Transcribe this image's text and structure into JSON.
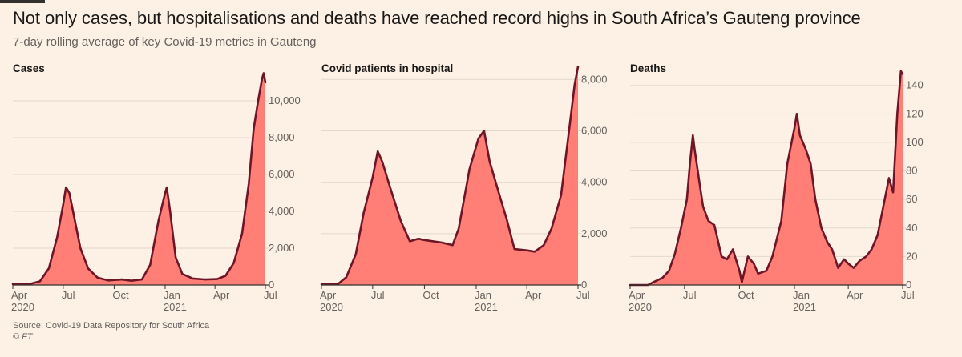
{
  "title": "Not only cases, but hospitalisations and deaths have reached record highs in South Africa’s Gauteng province",
  "subtitle": "7-day rolling average of key Covid-19 metrics in Gauteng",
  "source": "Source: Covid-19 Data Repository for South Africa",
  "copyright": "© FT",
  "colors": {
    "fill": "#ff7f76",
    "line": "#6e1527",
    "grid": "#e3d8cd",
    "axis": "#33302e",
    "text": "#66605c"
  },
  "chart_data": [
    {
      "type": "area",
      "title": "Cases",
      "x_start": "2020-04-01",
      "x_end": "2021-07-01",
      "xticks": [
        {
          "date": "2020-04-01",
          "label": "Apr",
          "sublabel": "2020"
        },
        {
          "date": "2020-07-01",
          "label": "Jul",
          "sublabel": ""
        },
        {
          "date": "2020-10-01",
          "label": "Oct",
          "sublabel": ""
        },
        {
          "date": "2021-01-01",
          "label": "Jan",
          "sublabel": "2021"
        },
        {
          "date": "2021-04-01",
          "label": "Apr",
          "sublabel": ""
        },
        {
          "date": "2021-07-01",
          "label": "Jul",
          "sublabel": ""
        }
      ],
      "ylim": [
        0,
        12000
      ],
      "yticks": [
        0,
        2000,
        4000,
        6000,
        8000,
        10000
      ],
      "ytick_labels": [
        "0",
        "2,000",
        "4,000",
        "6,000",
        "8,000",
        "10,000"
      ],
      "points": [
        [
          "2020-04-01",
          50
        ],
        [
          "2020-05-01",
          50
        ],
        [
          "2020-05-20",
          200
        ],
        [
          "2020-06-05",
          900
        ],
        [
          "2020-06-20",
          2600
        ],
        [
          "2020-07-01",
          4400
        ],
        [
          "2020-07-06",
          5300
        ],
        [
          "2020-07-12",
          5000
        ],
        [
          "2020-07-20",
          3800
        ],
        [
          "2020-08-01",
          2000
        ],
        [
          "2020-08-15",
          900
        ],
        [
          "2020-09-01",
          400
        ],
        [
          "2020-09-20",
          250
        ],
        [
          "2020-10-15",
          300
        ],
        [
          "2020-11-01",
          230
        ],
        [
          "2020-11-20",
          300
        ],
        [
          "2020-12-05",
          1100
        ],
        [
          "2020-12-20",
          3500
        ],
        [
          "2021-01-01",
          5000
        ],
        [
          "2021-01-04",
          5300
        ],
        [
          "2021-01-10",
          4000
        ],
        [
          "2021-01-20",
          1500
        ],
        [
          "2021-02-01",
          600
        ],
        [
          "2021-02-20",
          350
        ],
        [
          "2021-03-15",
          300
        ],
        [
          "2021-04-05",
          320
        ],
        [
          "2021-04-20",
          500
        ],
        [
          "2021-05-05",
          1200
        ],
        [
          "2021-05-20",
          2800
        ],
        [
          "2021-06-01",
          5500
        ],
        [
          "2021-06-10",
          8500
        ],
        [
          "2021-06-18",
          10000
        ],
        [
          "2021-06-25",
          11200
        ],
        [
          "2021-06-28",
          11500
        ],
        [
          "2021-07-01",
          11000
        ]
      ]
    },
    {
      "type": "area",
      "title": "Covid patients in hospital",
      "x_start": "2020-04-01",
      "x_end": "2021-07-01",
      "xticks": [
        {
          "date": "2020-04-01",
          "label": "Apr",
          "sublabel": "2020"
        },
        {
          "date": "2020-07-01",
          "label": "Jul",
          "sublabel": ""
        },
        {
          "date": "2020-10-01",
          "label": "Oct",
          "sublabel": ""
        },
        {
          "date": "2021-01-01",
          "label": "Jan",
          "sublabel": "2021"
        },
        {
          "date": "2021-04-01",
          "label": "Apr",
          "sublabel": ""
        },
        {
          "date": "2021-07-01",
          "label": "Jul",
          "sublabel": ""
        }
      ],
      "ylim": [
        0,
        8600
      ],
      "yticks": [
        0,
        2000,
        4000,
        6000,
        8000
      ],
      "ytick_labels": [
        "0",
        "2,000",
        "4,000",
        "6,000",
        "8,000"
      ],
      "points": [
        [
          "2020-04-01",
          30
        ],
        [
          "2020-05-01",
          50
        ],
        [
          "2020-05-15",
          300
        ],
        [
          "2020-06-01",
          1200
        ],
        [
          "2020-06-15",
          2800
        ],
        [
          "2020-07-01",
          4200
        ],
        [
          "2020-07-10",
          5200
        ],
        [
          "2020-07-18",
          4800
        ],
        [
          "2020-08-01",
          3800
        ],
        [
          "2020-08-20",
          2500
        ],
        [
          "2020-09-05",
          1700
        ],
        [
          "2020-09-20",
          1800
        ],
        [
          "2020-10-01",
          1750
        ],
        [
          "2020-11-01",
          1650
        ],
        [
          "2020-11-20",
          1550
        ],
        [
          "2020-12-01",
          2200
        ],
        [
          "2020-12-20",
          4500
        ],
        [
          "2021-01-05",
          5700
        ],
        [
          "2021-01-15",
          6000
        ],
        [
          "2021-01-25",
          4800
        ],
        [
          "2021-02-10",
          3600
        ],
        [
          "2021-02-25",
          2500
        ],
        [
          "2021-03-10",
          1400
        ],
        [
          "2021-04-01",
          1350
        ],
        [
          "2021-04-15",
          1300
        ],
        [
          "2021-05-01",
          1550
        ],
        [
          "2021-05-15",
          2200
        ],
        [
          "2021-06-01",
          3500
        ],
        [
          "2021-06-15",
          6000
        ],
        [
          "2021-06-25",
          7800
        ],
        [
          "2021-07-01",
          8500
        ]
      ]
    },
    {
      "type": "area",
      "title": "Deaths",
      "x_start": "2020-04-01",
      "x_end": "2021-07-01",
      "xticks": [
        {
          "date": "2020-04-01",
          "label": "Apr",
          "sublabel": "2020"
        },
        {
          "date": "2020-07-01",
          "label": "Jul",
          "sublabel": ""
        },
        {
          "date": "2020-10-01",
          "label": "Oct",
          "sublabel": ""
        },
        {
          "date": "2021-01-01",
          "label": "Jan",
          "sublabel": "2021"
        },
        {
          "date": "2021-04-01",
          "label": "Apr",
          "sublabel": ""
        },
        {
          "date": "2021-07-01",
          "label": "Jul",
          "sublabel": ""
        }
      ],
      "ylim": [
        0,
        155
      ],
      "yticks": [
        0,
        20,
        40,
        60,
        80,
        100,
        120,
        140
      ],
      "ytick_labels": [
        "0",
        "20",
        "40",
        "60",
        "80",
        "100",
        "120",
        "140"
      ],
      "points": [
        [
          "2020-04-01",
          0
        ],
        [
          "2020-05-01",
          0
        ],
        [
          "2020-05-10",
          2
        ],
        [
          "2020-05-25",
          5
        ],
        [
          "2020-06-05",
          10
        ],
        [
          "2020-06-15",
          22
        ],
        [
          "2020-06-25",
          40
        ],
        [
          "2020-07-05",
          60
        ],
        [
          "2020-07-10",
          85
        ],
        [
          "2020-07-15",
          105
        ],
        [
          "2020-07-18",
          95
        ],
        [
          "2020-07-25",
          75
        ],
        [
          "2020-08-01",
          55
        ],
        [
          "2020-08-10",
          45
        ],
        [
          "2020-08-20",
          42
        ],
        [
          "2020-09-01",
          20
        ],
        [
          "2020-09-10",
          18
        ],
        [
          "2020-09-20",
          25
        ],
        [
          "2020-10-01",
          10
        ],
        [
          "2020-10-05",
          2
        ],
        [
          "2020-10-15",
          20
        ],
        [
          "2020-10-25",
          15
        ],
        [
          "2020-11-01",
          8
        ],
        [
          "2020-11-15",
          10
        ],
        [
          "2020-11-25",
          20
        ],
        [
          "2020-12-10",
          45
        ],
        [
          "2020-12-20",
          85
        ],
        [
          "2021-01-01",
          110
        ],
        [
          "2021-01-05",
          120
        ],
        [
          "2021-01-10",
          105
        ],
        [
          "2021-01-20",
          95
        ],
        [
          "2021-01-28",
          85
        ],
        [
          "2021-02-05",
          60
        ],
        [
          "2021-02-15",
          40
        ],
        [
          "2021-02-25",
          30
        ],
        [
          "2021-03-05",
          25
        ],
        [
          "2021-03-15",
          12
        ],
        [
          "2021-03-25",
          18
        ],
        [
          "2021-04-01",
          15
        ],
        [
          "2021-04-10",
          12
        ],
        [
          "2021-04-20",
          17
        ],
        [
          "2021-05-01",
          20
        ],
        [
          "2021-05-10",
          25
        ],
        [
          "2021-05-20",
          35
        ],
        [
          "2021-06-01",
          60
        ],
        [
          "2021-06-08",
          75
        ],
        [
          "2021-06-15",
          65
        ],
        [
          "2021-06-22",
          120
        ],
        [
          "2021-06-28",
          150
        ],
        [
          "2021-07-01",
          148
        ]
      ]
    }
  ]
}
